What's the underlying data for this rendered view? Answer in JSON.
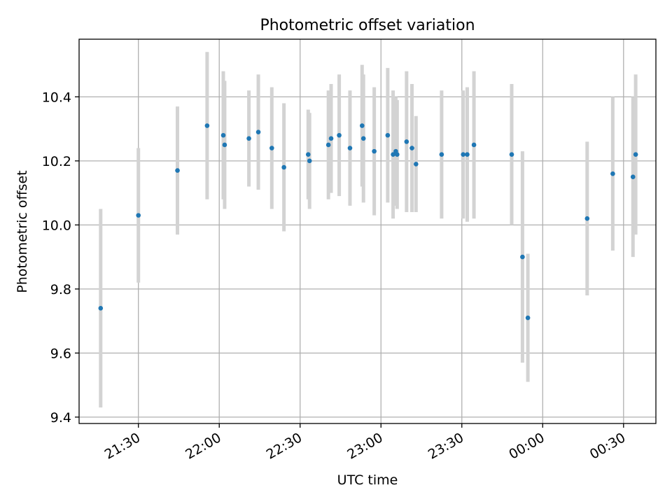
{
  "chart_data": {
    "type": "scatter",
    "title": "Photometric offset variation",
    "xlabel": "UTC time",
    "ylabel": "Photometric offset",
    "xlim": [
      "21:08",
      "00:42"
    ],
    "ylim": [
      9.38,
      10.58
    ],
    "xticks": [
      "21:30",
      "22:00",
      "22:30",
      "23:00",
      "23:30",
      "00:00",
      "00:30"
    ],
    "yticks": [
      9.4,
      9.6,
      9.8,
      10.0,
      10.2,
      10.4
    ],
    "grid": true,
    "marker_color": "#1f77b4",
    "errorbar_color": "#d3d3d3",
    "series": [
      {
        "points": [
          {
            "x": "21:16:00",
            "y": 9.74,
            "err": 0.31
          },
          {
            "x": "21:30:00",
            "y": 10.03,
            "err": 0.21
          },
          {
            "x": "21:44:30",
            "y": 10.17,
            "err": 0.2
          },
          {
            "x": "21:55:30",
            "y": 10.31,
            "err": 0.23
          },
          {
            "x": "22:01:30",
            "y": 10.28,
            "err": 0.2
          },
          {
            "x": "22:02:00",
            "y": 10.25,
            "err": 0.2
          },
          {
            "x": "22:11:00",
            "y": 10.27,
            "err": 0.15
          },
          {
            "x": "22:14:30",
            "y": 10.29,
            "err": 0.18
          },
          {
            "x": "22:19:30",
            "y": 10.24,
            "err": 0.19
          },
          {
            "x": "22:24:00",
            "y": 10.18,
            "err": 0.2
          },
          {
            "x": "22:33:00",
            "y": 10.22,
            "err": 0.14
          },
          {
            "x": "22:33:30",
            "y": 10.2,
            "err": 0.15
          },
          {
            "x": "22:40:30",
            "y": 10.25,
            "err": 0.17
          },
          {
            "x": "22:41:30",
            "y": 10.27,
            "err": 0.17
          },
          {
            "x": "22:44:30",
            "y": 10.28,
            "err": 0.19
          },
          {
            "x": "22:48:30",
            "y": 10.24,
            "err": 0.18
          },
          {
            "x": "22:53:00",
            "y": 10.31,
            "err": 0.19
          },
          {
            "x": "22:53:30",
            "y": 10.27,
            "err": 0.2
          },
          {
            "x": "22:57:30",
            "y": 10.23,
            "err": 0.2
          },
          {
            "x": "23:02:30",
            "y": 10.28,
            "err": 0.21
          },
          {
            "x": "23:04:30",
            "y": 10.22,
            "err": 0.2
          },
          {
            "x": "23:05:30",
            "y": 10.23,
            "err": 0.17
          },
          {
            "x": "23:06:00",
            "y": 10.22,
            "err": 0.17
          },
          {
            "x": "23:09:30",
            "y": 10.26,
            "err": 0.22
          },
          {
            "x": "23:11:30",
            "y": 10.24,
            "err": 0.2
          },
          {
            "x": "23:13:00",
            "y": 10.19,
            "err": 0.15
          },
          {
            "x": "23:22:30",
            "y": 10.22,
            "err": 0.2
          },
          {
            "x": "23:30:30",
            "y": 10.22,
            "err": 0.2
          },
          {
            "x": "23:32:00",
            "y": 10.22,
            "err": 0.21
          },
          {
            "x": "23:34:30",
            "y": 10.25,
            "err": 0.23
          },
          {
            "x": "23:48:30",
            "y": 10.22,
            "err": 0.22
          },
          {
            "x": "23:52:30",
            "y": 9.9,
            "err": 0.33
          },
          {
            "x": "23:54:30",
            "y": 9.71,
            "err": 0.2
          },
          {
            "x": "00:16:30",
            "y": 10.02,
            "err": 0.24
          },
          {
            "x": "00:26:00",
            "y": 10.16,
            "err": 0.24
          },
          {
            "x": "00:33:30",
            "y": 10.15,
            "err": 0.25
          },
          {
            "x": "00:34:30",
            "y": 10.22,
            "err": 0.25
          }
        ]
      }
    ]
  }
}
